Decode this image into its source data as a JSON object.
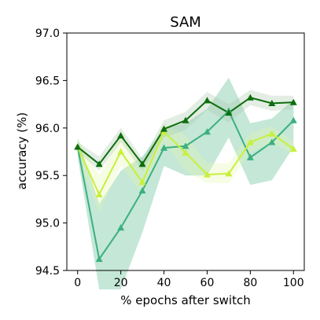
{
  "chart_data": {
    "type": "line",
    "title": "SAM",
    "xlabel": "% epochs after switch",
    "ylabel": "accuracy (%)",
    "xlim": [
      -5,
      105
    ],
    "ylim": [
      94.5,
      97.0
    ],
    "xticks": [
      0,
      20,
      40,
      60,
      80,
      100
    ],
    "yticks": [
      94.5,
      95.0,
      95.5,
      96.0,
      96.5,
      97.0
    ],
    "ytick_labels": [
      "94.5",
      "95.0",
      "95.5",
      "96.0",
      "96.5",
      "97.0"
    ],
    "grid": false,
    "legend": false,
    "x": [
      0,
      10,
      20,
      30,
      40,
      50,
      60,
      70,
      80,
      90,
      100
    ],
    "series": [
      {
        "color": "#3cb07f",
        "band_color": "#3cb07f",
        "marker": "triangle",
        "values": [
          95.8,
          94.62,
          94.95,
          95.34,
          95.79,
          95.81,
          95.96,
          96.18,
          95.69,
          95.85,
          96.08
        ],
        "lower": [
          95.7,
          94.3,
          94.3,
          94.9,
          95.6,
          95.5,
          95.5,
          95.9,
          95.4,
          95.45,
          95.8
        ],
        "upper": [
          95.9,
          95.2,
          95.55,
          95.7,
          96.0,
          96.05,
          96.2,
          96.53,
          96.05,
          96.1,
          96.3
        ]
      },
      {
        "color": "#c8f03c",
        "band_color": "#e6f7a6",
        "marker": "triangle",
        "values": [
          95.8,
          95.3,
          95.75,
          95.43,
          95.96,
          95.74,
          95.51,
          95.52,
          95.85,
          95.94,
          95.78
        ],
        "lower": [
          95.7,
          95.1,
          95.6,
          95.3,
          95.85,
          95.55,
          95.42,
          95.42,
          95.75,
          95.85,
          95.72
        ],
        "upper": [
          95.9,
          95.5,
          95.92,
          95.62,
          96.05,
          95.92,
          95.63,
          95.63,
          95.95,
          96.02,
          95.86
        ]
      },
      {
        "color": "#0d6e0d",
        "band_color": "#a3c2a3",
        "marker": "triangle",
        "values": [
          95.8,
          95.62,
          95.92,
          95.62,
          95.99,
          96.08,
          96.29,
          96.16,
          96.32,
          96.26,
          96.27
        ],
        "lower": [
          95.75,
          95.55,
          95.85,
          95.55,
          95.9,
          95.98,
          96.19,
          96.06,
          96.24,
          96.18,
          96.2
        ],
        "upper": [
          95.85,
          95.7,
          96.0,
          95.68,
          96.08,
          96.17,
          96.38,
          96.25,
          96.4,
          96.34,
          96.34
        ]
      }
    ]
  }
}
